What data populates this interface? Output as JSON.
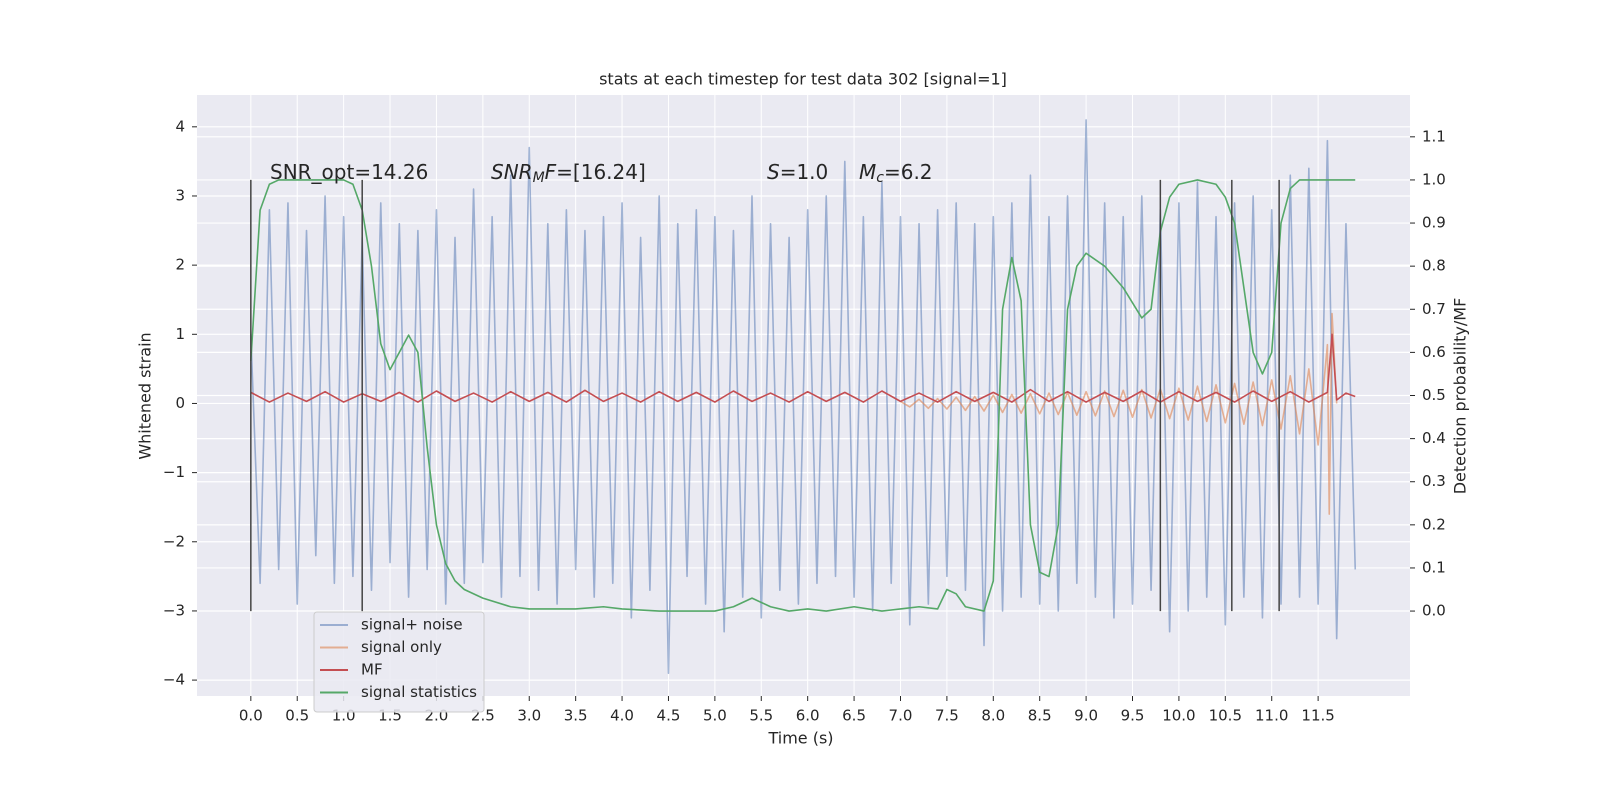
{
  "chart_data": {
    "type": "line",
    "title": "stats at each timestep for test data 302 [signal=1]",
    "xlabel": "Time (s)",
    "ylabel": "Whitened strain",
    "y2label": "Detection probability/MF",
    "xlim": [
      -0.58,
      12.49
    ],
    "ylim": [
      -4.23,
      4.46
    ],
    "y2lim": [
      -0.197,
      1.197
    ],
    "xticks": [
      {
        "value": 0,
        "label": "0.0"
      },
      0.5,
      {
        "value": 1,
        "label": "1.0"
      },
      1.5,
      {
        "value": 2,
        "label": "2.0"
      },
      2.5,
      {
        "value": 3,
        "label": "3.0"
      },
      3.5,
      {
        "value": 4,
        "label": "4.0"
      },
      4.5,
      {
        "value": 5,
        "label": "5.0"
      },
      5.5,
      {
        "value": 6,
        "label": "6.0"
      },
      6.5,
      {
        "value": 7,
        "label": "7.0"
      },
      7.5,
      {
        "value": 8,
        "label": "8.0"
      },
      8.5,
      {
        "value": 9,
        "label": "9.0"
      },
      9.5,
      {
        "value": 10,
        "label": "10.0"
      },
      10.5,
      {
        "value": 11,
        "label": "11.0"
      },
      11.5
    ],
    "yticks": [
      {
        "value": -4,
        "label": "−4"
      },
      {
        "value": -3,
        "label": "−3"
      },
      {
        "value": -2,
        "label": "−2"
      },
      {
        "value": -1,
        "label": "−1"
      },
      0,
      1,
      2,
      3,
      4
    ],
    "y2ticks": [
      {
        "value": 0,
        "label": "0.0"
      },
      0.1,
      0.2,
      0.3,
      0.4,
      0.5,
      0.6,
      0.7,
      0.8,
      0.9,
      {
        "value": 1,
        "label": "1.0"
      },
      1.1
    ],
    "grid": true,
    "legend": "lower left",
    "series": [
      {
        "name": "signal+ noise",
        "color": "#4c72b0",
        "opacity": 0.5,
        "x": [
          0.0,
          0.1,
          0.2,
          0.3,
          0.4,
          0.5,
          0.6,
          0.7,
          0.8,
          0.9,
          1.0,
          1.1,
          1.2,
          1.3,
          1.4,
          1.5,
          1.6,
          1.7,
          1.8,
          1.9,
          2.0,
          2.1,
          2.2,
          2.3,
          2.4,
          2.5,
          2.6,
          2.7,
          2.8,
          2.9,
          3.0,
          3.1,
          3.2,
          3.3,
          3.4,
          3.5,
          3.6,
          3.7,
          3.8,
          3.9,
          4.0,
          4.1,
          4.2,
          4.3,
          4.4,
          4.5,
          4.6,
          4.7,
          4.8,
          4.9,
          5.0,
          5.1,
          5.2,
          5.3,
          5.4,
          5.5,
          5.6,
          5.7,
          5.8,
          5.9,
          6.0,
          6.1,
          6.2,
          6.3,
          6.4,
          6.5,
          6.6,
          6.7,
          6.8,
          6.9,
          7.0,
          7.1,
          7.2,
          7.3,
          7.4,
          7.5,
          7.6,
          7.7,
          7.8,
          7.9,
          8.0,
          8.1,
          8.2,
          8.3,
          8.4,
          8.5,
          8.6,
          8.7,
          8.8,
          8.9,
          9.0,
          9.1,
          9.2,
          9.3,
          9.4,
          9.5,
          9.6,
          9.7,
          9.8,
          9.9,
          10.0,
          10.1,
          10.2,
          10.3,
          10.4,
          10.5,
          10.6,
          10.7,
          10.8,
          10.9,
          11.0,
          11.1,
          11.2,
          11.3,
          11.4,
          11.5,
          11.6,
          11.7,
          11.8,
          11.9
        ],
        "values": [
          1.0,
          -2.6,
          2.8,
          -2.4,
          2.9,
          -2.9,
          2.5,
          -2.2,
          3.0,
          -2.6,
          2.7,
          -2.5,
          2.4,
          -2.7,
          2.9,
          -2.3,
          2.6,
          -2.8,
          2.5,
          -2.4,
          2.8,
          -2.9,
          2.4,
          -2.6,
          3.1,
          -2.3,
          2.7,
          -2.8,
          3.3,
          -2.5,
          3.7,
          -2.7,
          2.6,
          -2.9,
          2.8,
          -2.4,
          2.5,
          -2.8,
          2.7,
          -2.6,
          2.9,
          -3.1,
          2.4,
          -2.7,
          3.0,
          -3.9,
          2.6,
          -2.5,
          2.8,
          -2.9,
          2.7,
          -3.3,
          2.5,
          -2.8,
          3.0,
          -3.1,
          2.6,
          -2.7,
          2.4,
          -2.9,
          2.8,
          -2.6,
          3.0,
          -2.5,
          3.5,
          -2.8,
          2.7,
          -3.0,
          3.2,
          -2.6,
          2.7,
          -3.2,
          2.6,
          -2.9,
          2.8,
          -2.5,
          2.9,
          -2.7,
          2.6,
          -3.5,
          2.7,
          -3.0,
          2.9,
          -2.8,
          3.3,
          -2.9,
          2.7,
          -3.0,
          3.0,
          -2.6,
          4.1,
          -2.8,
          2.9,
          -3.1,
          2.7,
          -2.9,
          3.0,
          -2.7,
          2.8,
          -3.3,
          2.9,
          -3.0,
          3.2,
          -2.8,
          2.7,
          -3.2,
          2.9,
          -2.8,
          3.0,
          -3.1,
          2.8,
          -2.9,
          3.3,
          -2.8,
          3.4,
          -2.9,
          3.8,
          -3.4,
          2.6,
          -2.4
        ]
      },
      {
        "name": "signal only",
        "color": "#dd8452",
        "opacity": 0.6,
        "x": [
          7.0,
          7.1,
          7.2,
          7.3,
          7.4,
          7.5,
          7.6,
          7.7,
          7.8,
          7.9,
          8.0,
          8.1,
          8.2,
          8.3,
          8.4,
          8.5,
          8.6,
          8.7,
          8.8,
          8.9,
          9.0,
          9.1,
          9.2,
          9.3,
          9.4,
          9.5,
          9.6,
          9.7,
          9.8,
          9.9,
          10.0,
          10.1,
          10.2,
          10.3,
          10.4,
          10.5,
          10.6,
          10.7,
          10.8,
          10.9,
          11.0,
          11.1,
          11.2,
          11.3,
          11.4,
          11.5,
          11.6,
          11.62,
          11.65,
          11.7
        ],
        "values": [
          0.03,
          -0.05,
          0.06,
          -0.07,
          0.07,
          -0.08,
          0.09,
          -0.1,
          0.1,
          -0.11,
          0.12,
          -0.13,
          0.13,
          -0.14,
          0.14,
          -0.15,
          0.15,
          -0.16,
          0.16,
          -0.17,
          0.17,
          -0.18,
          0.18,
          -0.19,
          0.19,
          -0.2,
          0.2,
          -0.21,
          0.21,
          -0.22,
          0.22,
          -0.24,
          0.25,
          -0.26,
          0.27,
          -0.28,
          0.29,
          -0.3,
          0.31,
          -0.32,
          0.34,
          -0.37,
          0.4,
          -0.44,
          0.5,
          -0.6,
          0.85,
          -1.6,
          1.3,
          0.0
        ]
      },
      {
        "name": "MF",
        "color": "#c44e52",
        "opacity": 1,
        "x": [
          0.0,
          0.2,
          0.4,
          0.6,
          0.8,
          1.0,
          1.2,
          1.4,
          1.6,
          1.8,
          2.0,
          2.2,
          2.4,
          2.6,
          2.8,
          3.0,
          3.2,
          3.4,
          3.6,
          3.8,
          4.0,
          4.2,
          4.4,
          4.6,
          4.8,
          5.0,
          5.2,
          5.4,
          5.6,
          5.8,
          6.0,
          6.2,
          6.4,
          6.6,
          6.8,
          7.0,
          7.2,
          7.4,
          7.6,
          7.8,
          8.0,
          8.2,
          8.4,
          8.6,
          8.8,
          9.0,
          9.2,
          9.4,
          9.6,
          9.8,
          10.0,
          10.2,
          10.4,
          10.6,
          10.8,
          11.0,
          11.2,
          11.4,
          11.6,
          11.65,
          11.7,
          11.8,
          11.9
        ],
        "values": [
          0.16,
          0.02,
          0.15,
          0.03,
          0.17,
          0.02,
          0.14,
          0.03,
          0.16,
          0.02,
          0.18,
          0.03,
          0.15,
          0.02,
          0.17,
          0.03,
          0.16,
          0.02,
          0.19,
          0.03,
          0.15,
          0.02,
          0.17,
          0.03,
          0.16,
          0.02,
          0.18,
          0.03,
          0.15,
          0.02,
          0.17,
          0.03,
          0.16,
          0.02,
          0.18,
          0.03,
          0.15,
          0.02,
          0.17,
          0.03,
          0.16,
          0.02,
          0.2,
          0.03,
          0.17,
          0.02,
          0.16,
          0.03,
          0.18,
          0.02,
          0.17,
          0.03,
          0.16,
          0.02,
          0.18,
          0.03,
          0.17,
          0.02,
          0.16,
          1.0,
          0.05,
          0.15,
          0.1
        ]
      },
      {
        "name": "signal statistics",
        "color": "#55a868",
        "opacity": 1,
        "axis": "y2",
        "x": [
          0.0,
          0.1,
          0.2,
          0.3,
          1.0,
          1.1,
          1.2,
          1.3,
          1.4,
          1.5,
          1.6,
          1.7,
          1.8,
          1.9,
          2.0,
          2.1,
          2.2,
          2.3,
          2.5,
          2.8,
          3.0,
          3.5,
          3.8,
          4.0,
          4.4,
          5.0,
          5.2,
          5.4,
          5.6,
          5.8,
          6.0,
          6.2,
          6.5,
          6.8,
          7.0,
          7.2,
          7.4,
          7.5,
          7.6,
          7.7,
          7.9,
          8.0,
          8.1,
          8.2,
          8.3,
          8.4,
          8.5,
          8.6,
          8.7,
          8.8,
          8.9,
          9.0,
          9.2,
          9.4,
          9.6,
          9.7,
          9.8,
          9.9,
          10.0,
          10.2,
          10.4,
          10.5,
          10.6,
          10.7,
          10.8,
          10.9,
          11.0,
          11.1,
          11.2,
          11.3,
          11.9
        ],
        "values": [
          0.58,
          0.93,
          0.99,
          1.0,
          1.0,
          0.99,
          0.93,
          0.8,
          0.62,
          0.56,
          0.6,
          0.64,
          0.6,
          0.38,
          0.2,
          0.11,
          0.07,
          0.05,
          0.03,
          0.01,
          0.005,
          0.005,
          0.01,
          0.005,
          0.0,
          0.0,
          0.01,
          0.03,
          0.01,
          0.0,
          0.005,
          0.0,
          0.01,
          0.0,
          0.005,
          0.01,
          0.005,
          0.05,
          0.04,
          0.01,
          0.0,
          0.07,
          0.7,
          0.82,
          0.72,
          0.2,
          0.09,
          0.08,
          0.2,
          0.7,
          0.8,
          0.83,
          0.8,
          0.75,
          0.68,
          0.7,
          0.88,
          0.96,
          0.99,
          1.0,
          0.99,
          0.96,
          0.9,
          0.75,
          0.6,
          0.55,
          0.6,
          0.9,
          0.98,
          1.0,
          1.0
        ]
      }
    ],
    "vlines": {
      "x": [
        0.0,
        1.2,
        9.8,
        10.57,
        11.08
      ],
      "ymin": 0,
      "ymax": 1,
      "axis": "y2",
      "color": "#444444"
    },
    "annotations": [
      {
        "parts": [
          {
            "text": "SNR_opt=14.26"
          }
        ]
      },
      {
        "parts": [
          {
            "text": "SNR",
            "style": "italic"
          },
          {
            "text": "M",
            "style": "sub"
          },
          {
            "text": "F",
            "style": "italic"
          },
          {
            "text": "=[16.24]"
          }
        ]
      },
      {
        "parts": [
          {
            "text": "S",
            "style": "italic"
          },
          {
            "text": "=1.0"
          }
        ]
      },
      {
        "parts": [
          {
            "text": "M",
            "style": "italic"
          },
          {
            "text": "c",
            "style": "sub"
          },
          {
            "text": "=6.2"
          }
        ]
      }
    ]
  }
}
